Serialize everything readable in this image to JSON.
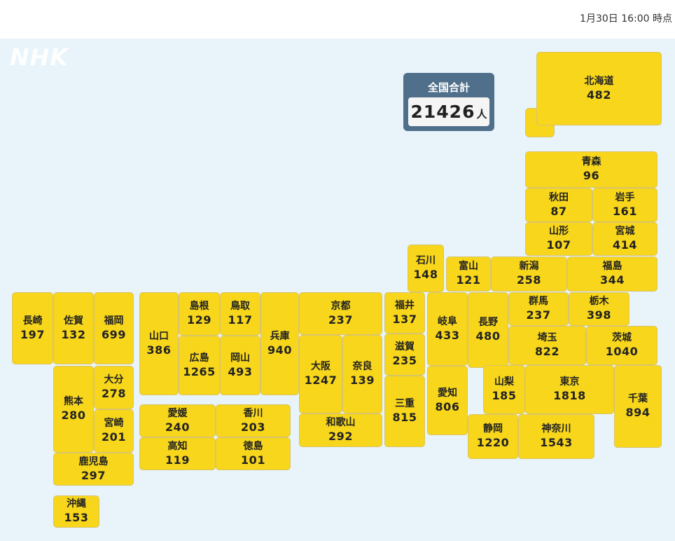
{
  "timestamp": "1月30日 16:00 時点",
  "logo": "NHK",
  "total": {
    "label": "全国合計",
    "value": "21426",
    "unit": "人"
  },
  "prefectures": [
    {
      "name": "北海道",
      "count": "482"
    },
    {
      "name": "青森",
      "count": "96"
    },
    {
      "name": "秋田",
      "count": "87"
    },
    {
      "name": "岩手",
      "count": "161"
    },
    {
      "name": "山形",
      "count": "107"
    },
    {
      "name": "宮城",
      "count": "414"
    },
    {
      "name": "石川",
      "count": "148"
    },
    {
      "name": "富山",
      "count": "121"
    },
    {
      "name": "新潟",
      "count": "258"
    },
    {
      "name": "福島",
      "count": "344"
    },
    {
      "name": "長崎",
      "count": "197"
    },
    {
      "name": "佐賀",
      "count": "132"
    },
    {
      "name": "福岡",
      "count": "699"
    },
    {
      "name": "山口",
      "count": "386"
    },
    {
      "name": "島根",
      "count": "129"
    },
    {
      "name": "鳥取",
      "count": "117"
    },
    {
      "name": "兵庫",
      "count": "940"
    },
    {
      "name": "京都",
      "count": "237"
    },
    {
      "name": "福井",
      "count": "137"
    },
    {
      "name": "岐阜",
      "count": "433"
    },
    {
      "name": "長野",
      "count": "480"
    },
    {
      "name": "群馬",
      "count": "237"
    },
    {
      "name": "栃木",
      "count": "398"
    },
    {
      "name": "広島",
      "count": "1265"
    },
    {
      "name": "岡山",
      "count": "493"
    },
    {
      "name": "滋賀",
      "count": "235"
    },
    {
      "name": "埼玉",
      "count": "822"
    },
    {
      "name": "茨城",
      "count": "1040"
    },
    {
      "name": "大分",
      "count": "278"
    },
    {
      "name": "熊本",
      "count": "280"
    },
    {
      "name": "宮崎",
      "count": "201"
    },
    {
      "name": "大阪",
      "count": "1247"
    },
    {
      "name": "奈良",
      "count": "139"
    },
    {
      "name": "三重",
      "count": "815"
    },
    {
      "name": "愛知",
      "count": "806"
    },
    {
      "name": "山梨",
      "count": "185"
    },
    {
      "name": "東京",
      "count": "1818"
    },
    {
      "name": "千葉",
      "count": "894"
    },
    {
      "name": "愛媛",
      "count": "240"
    },
    {
      "name": "香川",
      "count": "203"
    },
    {
      "name": "高知",
      "count": "119"
    },
    {
      "name": "徳島",
      "count": "101"
    },
    {
      "name": "和歌山",
      "count": "292"
    },
    {
      "name": "静岡",
      "count": "1220"
    },
    {
      "name": "神奈川",
      "count": "1543"
    },
    {
      "name": "鹿児島",
      "count": "297"
    },
    {
      "name": "沖縄",
      "count": "153"
    }
  ],
  "colors": {
    "tile": "#f7d61c",
    "background": "#e8f4fa",
    "total_box": "#4f6f8a"
  }
}
